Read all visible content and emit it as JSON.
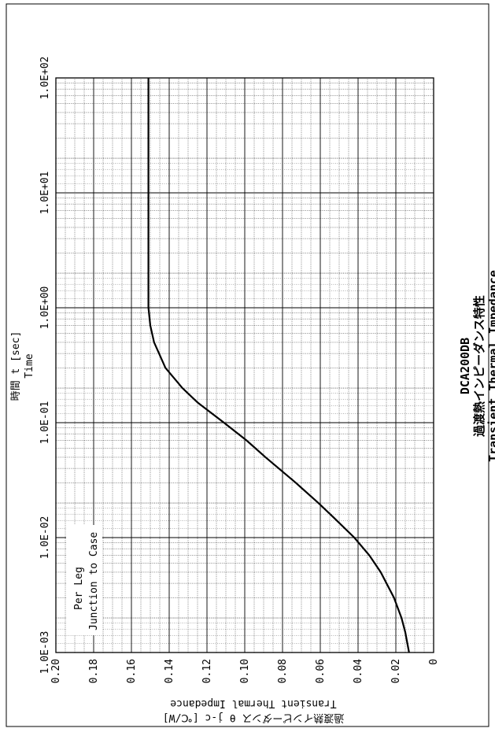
{
  "chart_data": {
    "type": "line",
    "title": "DCA200DB",
    "subtitle_jp": "過渡熱インピーダンス特性",
    "subtitle_en": "Transient Thermal Impedance",
    "xlabel_jp": "時間 t [sec]",
    "xlabel_en": "Time",
    "ylabel_jp": "過渡熱インピーダンス θ j-c [℃/W]",
    "ylabel_en": "Transient Thermal Impedance",
    "xscale": "log",
    "xlim": [
      0.001,
      100
    ],
    "ylim": [
      0,
      0.2
    ],
    "x_tick_labels": [
      "1.0E-03",
      "1.0E-02",
      "1.0E-01",
      "1.0E+00",
      "1.0E+01",
      "1.0E+02"
    ],
    "y_tick_labels": [
      "0",
      "0.02",
      "0.04",
      "0.06",
      "0.08",
      "0.10",
      "0.12",
      "0.14",
      "0.16",
      "0.18",
      "0.20"
    ],
    "grid": true,
    "annotations": [
      "Per Leg",
      "Junction to Case"
    ],
    "orientation": "rotated 90° counter-clockwise",
    "series": [
      {
        "color": "#000000",
        "x": [
          0.001,
          0.0015,
          0.002,
          0.003,
          0.005,
          0.007,
          0.01,
          0.015,
          0.02,
          0.03,
          0.05,
          0.07,
          0.1,
          0.15,
          0.2,
          0.3,
          0.5,
          0.7,
          1,
          2,
          5,
          10,
          20,
          50,
          100
        ],
        "y": [
          0.013,
          0.015,
          0.017,
          0.021,
          0.028,
          0.034,
          0.042,
          0.053,
          0.061,
          0.073,
          0.089,
          0.099,
          0.111,
          0.125,
          0.133,
          0.142,
          0.148,
          0.15,
          0.151,
          0.151,
          0.151,
          0.151,
          0.151,
          0.151,
          0.151
        ]
      }
    ]
  }
}
